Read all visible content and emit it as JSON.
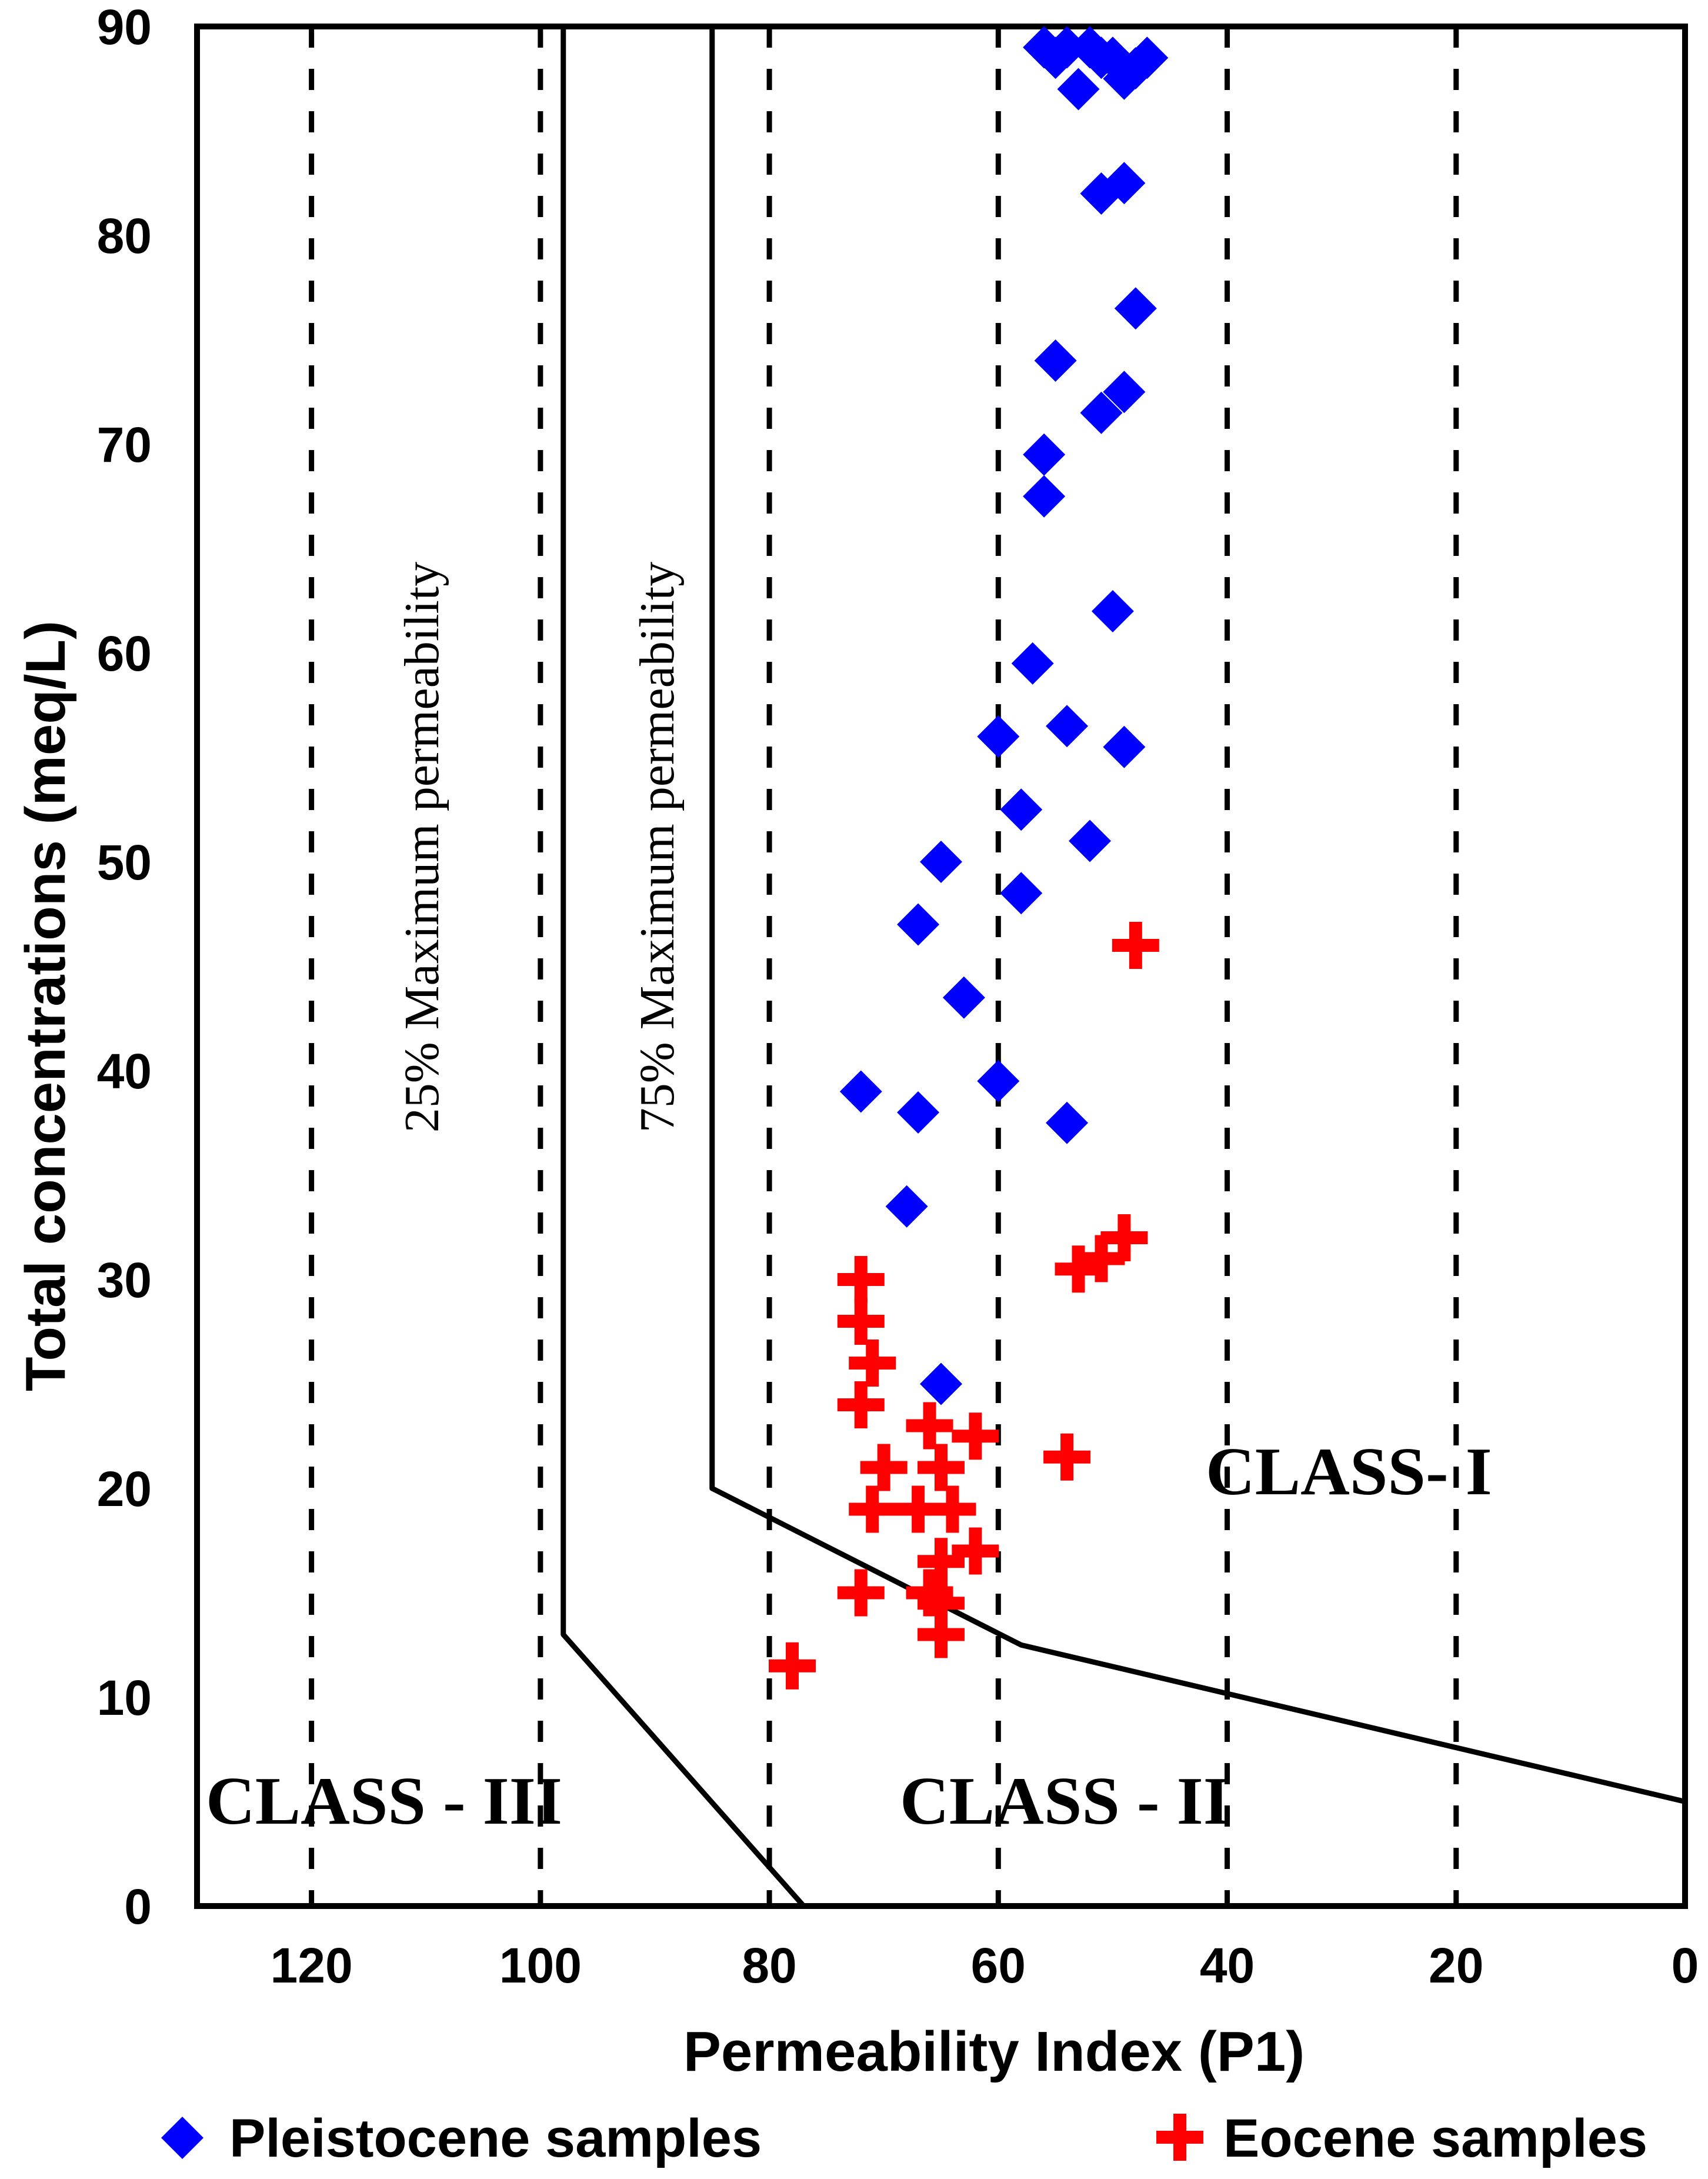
{
  "chart_data": {
    "type": "scatter",
    "title": "",
    "xlabel": "Permeability Index (P1)",
    "ylabel": "Total concentrations (meq/L)",
    "xlim": [
      130,
      0
    ],
    "ylim": [
      0,
      90
    ],
    "x_ticks": [
      120,
      100,
      80,
      60,
      40,
      20,
      0
    ],
    "y_ticks": [
      0,
      10,
      20,
      30,
      40,
      50,
      60,
      70,
      80,
      90
    ],
    "gridlines": {
      "vertical_dashed_at": [
        120,
        100,
        80,
        60,
        40,
        20
      ]
    },
    "boundaries": [
      {
        "name": "25% Maximum permeability",
        "points": [
          [
            98,
            90
          ],
          [
            98,
            13
          ],
          [
            77,
            0
          ]
        ]
      },
      {
        "name": "75% Maximum permeability",
        "points": [
          [
            85,
            90
          ],
          [
            85,
            20
          ],
          [
            58,
            12.5
          ],
          [
            0,
            5
          ]
        ]
      }
    ],
    "zone_labels": {
      "b25": "25% Maximum permeability",
      "b75": "75% Maximum permeability",
      "class1": "CLASS- I",
      "class2": "CLASS - II",
      "class3": "CLASS - III"
    },
    "series": [
      {
        "name": "Pleistocene samples",
        "marker": "diamond",
        "color": "#0000ff",
        "points": [
          [
            56,
            89
          ],
          [
            55,
            88.5
          ],
          [
            54,
            89
          ],
          [
            52,
            89
          ],
          [
            51,
            88.5
          ],
          [
            50,
            88.5
          ],
          [
            48,
            88
          ],
          [
            47,
            88.5
          ],
          [
            49,
            87.5
          ],
          [
            53,
            87
          ],
          [
            51,
            82
          ],
          [
            49,
            82.5
          ],
          [
            48,
            76.5
          ],
          [
            55,
            74
          ],
          [
            49,
            72.5
          ],
          [
            51,
            71.5
          ],
          [
            56,
            69.5
          ],
          [
            56,
            67.5
          ],
          [
            50,
            62
          ],
          [
            57,
            59.5
          ],
          [
            54,
            56.5
          ],
          [
            49,
            55.5
          ],
          [
            60,
            56
          ],
          [
            58,
            52.5
          ],
          [
            52,
            51
          ],
          [
            65,
            50
          ],
          [
            58,
            48.5
          ],
          [
            67,
            47
          ],
          [
            63,
            43.5
          ],
          [
            60,
            39.5
          ],
          [
            72,
            39
          ],
          [
            67,
            38
          ],
          [
            54,
            37.5
          ],
          [
            68,
            33.5
          ],
          [
            65,
            25
          ]
        ]
      },
      {
        "name": "Eocene samples",
        "marker": "plus",
        "color": "#ff0000",
        "points": [
          [
            48,
            46
          ],
          [
            49,
            32
          ],
          [
            51,
            31
          ],
          [
            53,
            30.5
          ],
          [
            72,
            30
          ],
          [
            72,
            28
          ],
          [
            71,
            26
          ],
          [
            72,
            24
          ],
          [
            66,
            23
          ],
          [
            62,
            22.5
          ],
          [
            54,
            21.5
          ],
          [
            70,
            21
          ],
          [
            65,
            21
          ],
          [
            71,
            19
          ],
          [
            67,
            19
          ],
          [
            64,
            19
          ],
          [
            65,
            16.5
          ],
          [
            62,
            17
          ],
          [
            72,
            15
          ],
          [
            66,
            15
          ],
          [
            65,
            14.5
          ],
          [
            65,
            13
          ],
          [
            78,
            11.5
          ]
        ]
      }
    ],
    "legend": {
      "position": "bottom"
    }
  }
}
